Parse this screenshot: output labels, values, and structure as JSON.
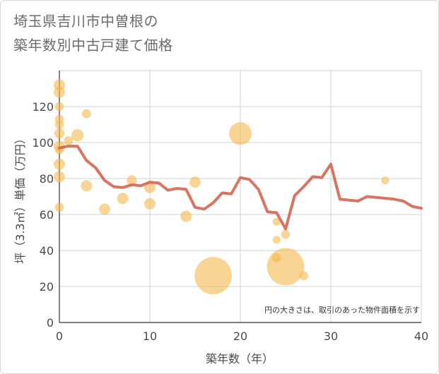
{
  "chart_data": {
    "type": "scatter",
    "title": [
      "埼玉県吉川市中曽根の",
      "築年数別中古戸建て価格"
    ],
    "xlabel": "築年数（年）",
    "ylabel": "坪（3.3㎡）単価（万円）",
    "xlim": [
      0,
      40
    ],
    "ylim": [
      0,
      140
    ],
    "x_ticks": [
      0,
      10,
      20,
      30,
      40
    ],
    "y_ticks": [
      0,
      20,
      40,
      60,
      80,
      100,
      120
    ],
    "grid": true,
    "note": "円の大きさは、取引のあった物件面積を示す",
    "colors": {
      "bubble": "#f5b94f",
      "line": "#d4654f",
      "grid": "#c9d3de",
      "axis": "#333333"
    },
    "series": [
      {
        "type": "bubble",
        "points": [
          {
            "x": 0,
            "y": 132,
            "size": 1.0
          },
          {
            "x": 0,
            "y": 128,
            "size": 1.0
          },
          {
            "x": 0,
            "y": 120,
            "size": 0.8
          },
          {
            "x": 0,
            "y": 113,
            "size": 0.8
          },
          {
            "x": 0,
            "y": 110,
            "size": 0.8
          },
          {
            "x": 0,
            "y": 105,
            "size": 0.9
          },
          {
            "x": 0,
            "y": 98,
            "size": 1.0
          },
          {
            "x": 0,
            "y": 96,
            "size": 0.8
          },
          {
            "x": 0,
            "y": 88,
            "size": 1.0
          },
          {
            "x": 0,
            "y": 81,
            "size": 1.0
          },
          {
            "x": 0,
            "y": 64,
            "size": 0.8
          },
          {
            "x": 1,
            "y": 101,
            "size": 0.8
          },
          {
            "x": 2,
            "y": 104,
            "size": 1.1
          },
          {
            "x": 3,
            "y": 116,
            "size": 0.8
          },
          {
            "x": 3,
            "y": 76,
            "size": 1.0
          },
          {
            "x": 5,
            "y": 63,
            "size": 1.0
          },
          {
            "x": 7,
            "y": 69,
            "size": 1.0
          },
          {
            "x": 8,
            "y": 79,
            "size": 0.9
          },
          {
            "x": 10,
            "y": 75,
            "size": 1.0
          },
          {
            "x": 10,
            "y": 66,
            "size": 1.0
          },
          {
            "x": 14,
            "y": 59,
            "size": 1.0
          },
          {
            "x": 15,
            "y": 78,
            "size": 1.0
          },
          {
            "x": 17,
            "y": 26,
            "size": 3.3
          },
          {
            "x": 20,
            "y": 105,
            "size": 2.0
          },
          {
            "x": 24,
            "y": 56,
            "size": 0.7
          },
          {
            "x": 24,
            "y": 46,
            "size": 0.7
          },
          {
            "x": 24,
            "y": 36,
            "size": 0.8
          },
          {
            "x": 25,
            "y": 31,
            "size": 3.3
          },
          {
            "x": 25,
            "y": 49,
            "size": 0.8
          },
          {
            "x": 27,
            "y": 26,
            "size": 0.8
          },
          {
            "x": 36,
            "y": 79,
            "size": 0.7
          }
        ]
      },
      {
        "type": "line",
        "x": [
          0,
          1,
          2,
          3,
          4,
          5,
          6,
          7,
          8,
          9,
          10,
          11,
          12,
          13,
          14,
          15,
          16,
          17,
          18,
          19,
          20,
          21,
          22,
          23,
          24,
          25,
          26,
          27,
          28,
          29,
          30,
          31,
          32,
          33,
          34,
          35,
          36,
          37,
          38,
          39,
          40
        ],
        "y": [
          97,
          98,
          98,
          90,
          86,
          79,
          75.5,
          75,
          76.5,
          76,
          78,
          77.5,
          73.5,
          74.5,
          74,
          64,
          63,
          66.5,
          72,
          71.5,
          80.5,
          79.5,
          74,
          61.5,
          61,
          52,
          70.5,
          75.5,
          81,
          80.5,
          88,
          68.5,
          68,
          67.5,
          70,
          69.5,
          69,
          68.5,
          67.5,
          64.5,
          63.5
        ]
      }
    ]
  }
}
